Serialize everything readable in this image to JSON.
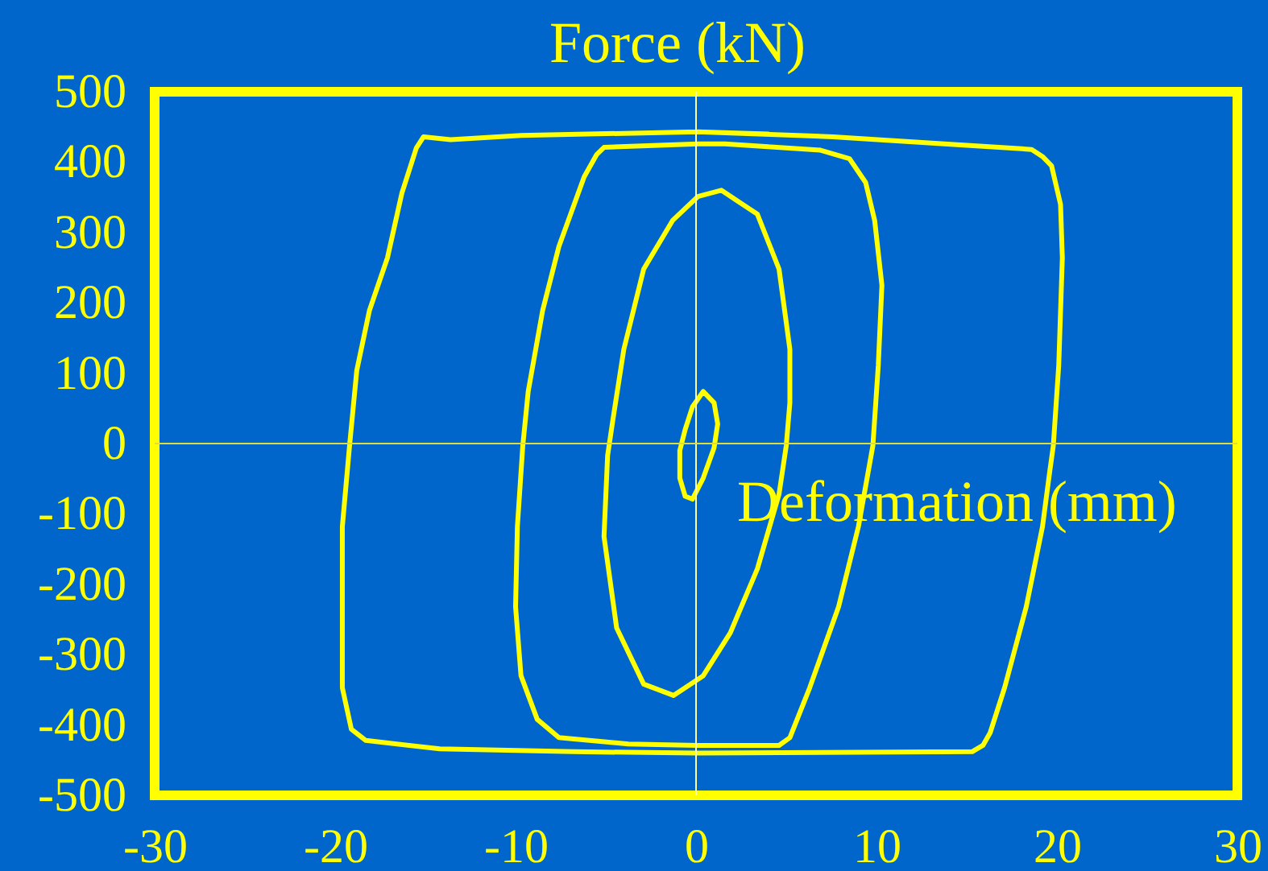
{
  "chart_data": {
    "type": "line",
    "xlabel": "Deformation (mm)",
    "ylabel": "Force (kN)",
    "xlim": [
      -30,
      30
    ],
    "ylim": [
      -500,
      500
    ],
    "xticks": [
      -30,
      -20,
      -10,
      0,
      10,
      20,
      30
    ],
    "yticks": [
      -500,
      -400,
      -300,
      -200,
      -100,
      0,
      100,
      200,
      300,
      400,
      500
    ],
    "series": [
      {
        "color": "#ffff00",
        "x": [
          0.1,
          7.6,
          15.0,
          18.6,
          19.2,
          19.7,
          20.2,
          20.3,
          20.1,
          19.8,
          19.6,
          19.2,
          18.3,
          17.1,
          16.3,
          15.9,
          15.3,
          0.1,
          -6.7,
          -14.2,
          -18.3,
          -19.1,
          -19.6,
          -19.6,
          -19.6,
          -19.2,
          -18.8,
          -18.1,
          -17.1,
          -16.3,
          -15.5,
          -15.1,
          -13.6,
          -9.7,
          0.1,
          4.0
        ],
        "values": [
          443,
          436,
          424,
          418,
          408,
          395,
          340,
          264,
          111,
          -3,
          -40,
          -118,
          -232,
          -347,
          -411,
          -429,
          -438,
          -440,
          -438,
          -434,
          -422,
          -406,
          -347,
          -232,
          -118,
          -3,
          104,
          189,
          264,
          356,
          420,
          436,
          432,
          438,
          443,
          440
        ]
      },
      {
        "color": "#ffff00",
        "x": [
          0.1,
          1.6,
          6.9,
          8.5,
          9.4,
          9.9,
          10.3,
          10.1,
          9.8,
          9.0,
          7.9,
          6.3,
          5.2,
          4.6,
          0.1,
          -3.75,
          -7.6,
          -8.8,
          -9.7,
          -10.0,
          -9.9,
          -9.6,
          -9.3,
          -8.5,
          -7.6,
          -6.2,
          -5.5,
          -5.1,
          0.1,
          1.6,
          4.0
        ],
        "values": [
          426,
          426,
          417,
          405,
          371,
          317,
          225,
          111,
          -3,
          -118,
          -232,
          -347,
          -418,
          -429,
          -429,
          -427,
          -418,
          -392,
          -330,
          -232,
          -118,
          -3,
          74,
          189,
          280,
          379,
          411,
          421,
          426,
          426,
          422
        ]
      },
      {
        "color": "#ffff00",
        "x": [
          0.1,
          1.4,
          3.4,
          4.6,
          5.2,
          5.2,
          5.0,
          4.6,
          3.4,
          1.9,
          0.4,
          -1.25,
          -2.9,
          -4.4,
          -5.1,
          -4.9,
          -4.6,
          -4.0,
          -2.9,
          -1.3,
          0.1,
          1.4,
          2.4
        ],
        "values": [
          351,
          360,
          326,
          248,
          134,
          58,
          -3,
          -72,
          -178,
          -269,
          -330,
          -358,
          -342,
          -262,
          -132,
          -17,
          35,
          134,
          248,
          317,
          351,
          360,
          343
        ]
      },
      {
        "color": "#ffff00",
        "x": [
          0.4,
          1.0,
          1.2,
          1.0,
          0.4,
          -0.2,
          -0.6,
          -0.9,
          -0.9,
          -0.6,
          -0.2,
          0.4,
          1.0,
          1.1
        ],
        "values": [
          74,
          58,
          28,
          -6,
          -49,
          -79,
          -75,
          -49,
          -10,
          20,
          52,
          74,
          58,
          43
        ]
      }
    ],
    "ref_lines": [
      {
        "axis": "x",
        "value": 0,
        "color": "#ffffaa"
      },
      {
        "axis": "y",
        "value": 0,
        "color": "#dede3a"
      }
    ]
  }
}
